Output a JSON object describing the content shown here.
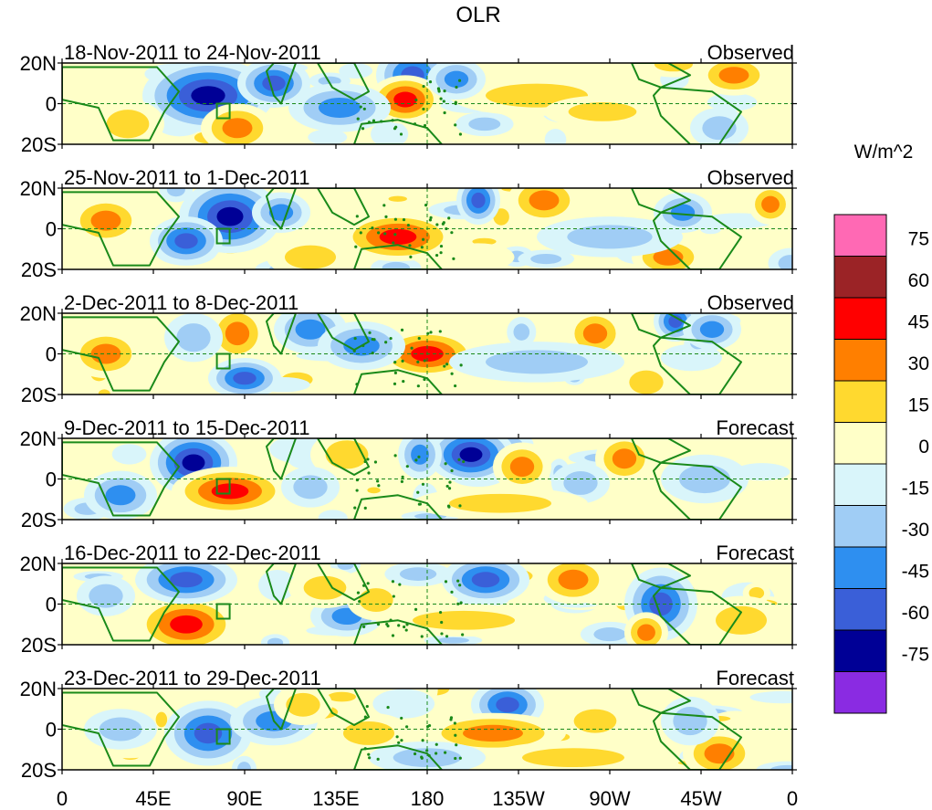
{
  "title": "OLR",
  "units": "W/m^2",
  "lat_labels": [
    "20N",
    "0",
    "20S"
  ],
  "lon_labels": [
    "0",
    "45E",
    "90E",
    "135E",
    "180",
    "135W",
    "90W",
    "45W",
    "0"
  ],
  "panels": [
    {
      "dates": "18-Nov-2011 to 24-Nov-2011",
      "type": "Observed"
    },
    {
      "dates": "25-Nov-2011 to 1-Dec-2011",
      "type": "Observed"
    },
    {
      "dates": "2-Dec-2011 to 8-Dec-2011",
      "type": "Observed"
    },
    {
      "dates": "9-Dec-2011 to 15-Dec-2011",
      "type": "Forecast"
    },
    {
      "dates": "16-Dec-2011 to 22-Dec-2011",
      "type": "Forecast"
    },
    {
      "dates": "23-Dec-2011 to 29-Dec-2011",
      "type": "Forecast"
    }
  ],
  "colorbar": {
    "colors": [
      "#ff69b4",
      "#9b2326",
      "#ff0000",
      "#ff7f00",
      "#ffd92f",
      "#ffffc8",
      "#d9f5fa",
      "#a0cdf5",
      "#2e8ff0",
      "#3a5fd8",
      "#000096",
      "#8a2be2"
    ],
    "labels": [
      "75",
      "60",
      "45",
      "30",
      "15",
      "0",
      "-15",
      "-30",
      "-45",
      "-60",
      "-75"
    ]
  },
  "anomaly_palette": {
    "neg": [
      "#d9f5fa",
      "#a0cdf5",
      "#2e8ff0",
      "#3a5fd8",
      "#000096"
    ],
    "pos": [
      "#ffffc8",
      "#ffd92f",
      "#ff7f00",
      "#ff0000",
      "#9b2326"
    ]
  },
  "coast_color": "#1a8a1a"
}
